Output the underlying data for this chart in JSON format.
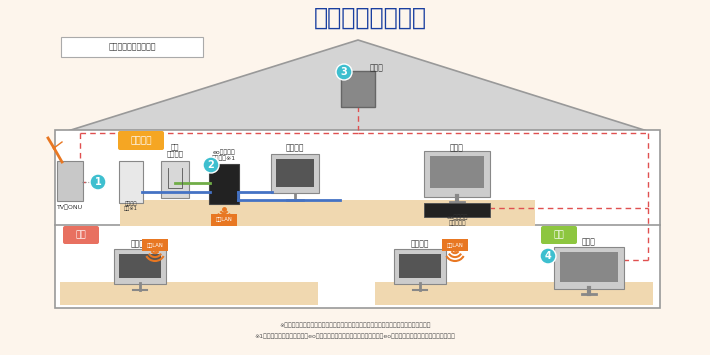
{
  "title": "設置機器と配線例",
  "title_color": "#1a3fa0",
  "bg_color": "#fdf5ec",
  "indoor_label": "宅内機器個別設置方式",
  "living_label": "リビング",
  "living_label_bg": "#f5a623",
  "study_label": "書斎",
  "study_label_bg": "#e87060",
  "washroom_label": "和室",
  "washroom_label_bg": "#8dc63f",
  "footnote1": "※設置させていただく機器の写真は、後のページに掲載しておりますのでご覧ください。",
  "footnote2": "※1　回線終端装置の代わりにeoホームゲートウェイが設置された場合、eo光多機能ルーターは設置されません。",
  "circle_color": "#3ebfcf",
  "dashed_color": "#e05050",
  "blue_color": "#4472c4",
  "green_color": "#70ad47",
  "orange_color": "#e87722",
  "wifi_color": "#e87722",
  "house_gray": "#d4d4d4",
  "house_wall": "#ffffff",
  "floor_color": "#f0d8b0",
  "device_gray": "#b0b0b0",
  "device_dark": "#555555",
  "tv_onu_gray": "#c0c0c0"
}
